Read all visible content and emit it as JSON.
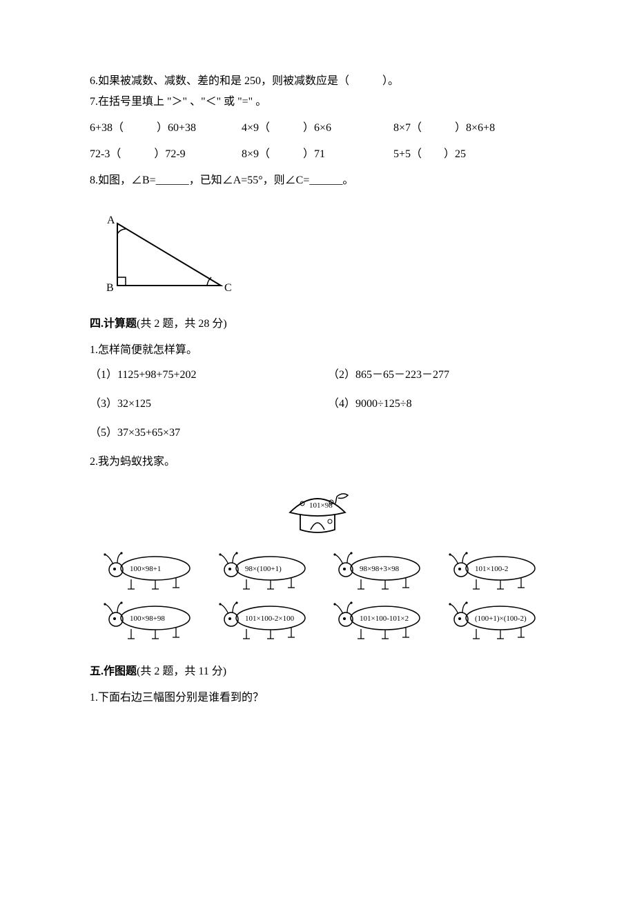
{
  "q6": "6.如果被减数、减数、差的和是 250，则被减数应是（　　　）。",
  "q7_intro": "7.在括号里填上 \"＞\" 、\"＜\" 或 \"=\" 。",
  "q7_row1": {
    "a": "6+38（　　　）60+38",
    "b": "4×9（　　　）6×6",
    "c": "8×7（　　　）8×6+8"
  },
  "q7_row2": {
    "a": "72-3（　　　）72-9",
    "b": "8×9（　　　）71",
    "c": "5+5（　　）25"
  },
  "q8_intro": "8.如图，∠B=______，已知∠A=55°，则∠C=______。",
  "triangle": {
    "A": "A",
    "B": "B",
    "C": "C",
    "stroke": "#000000",
    "fill": "none"
  },
  "sec4": {
    "hd": "四.计算题",
    "tail": "(共 2 题，共 28 分)"
  },
  "s4q1_intro": "1.怎样简便就怎样算。",
  "s4q1": {
    "c1": "（1）1125+98+75+202",
    "c2": "（2）865－65－223－277",
    "c3": "（3）32×125",
    "c4": "（4）9000÷125÷8",
    "c5": "（5）37×35+65×37"
  },
  "s4q2_intro": "2.我为蚂蚁找家。",
  "house_label": "101×98",
  "ants": {
    "r1": [
      "100×98+1",
      "98×(100+1)",
      "98×98+3×98",
      "101×100-2"
    ],
    "r2": [
      "100×98+98",
      "101×100-2×100",
      "101×100-101×2",
      "(100+1)×(100-2)"
    ]
  },
  "sec5": {
    "hd": "五.作图题",
    "tail": "(共 2 题，共 11 分)"
  },
  "s5q1": "1.下面右边三幅图分别是谁看到的？",
  "colors": {
    "text": "#000000",
    "background": "#ffffff"
  },
  "fontsize_body": 16
}
